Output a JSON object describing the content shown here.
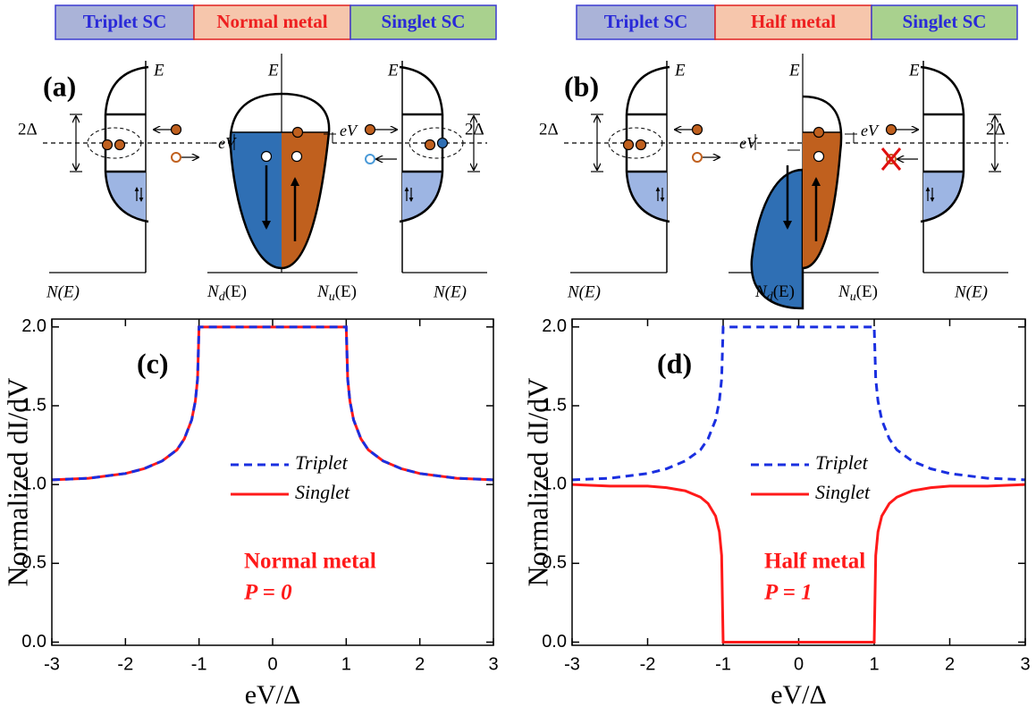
{
  "chart_data": [
    {
      "type": "line",
      "panel_label": "(c)",
      "x_label": "eV/Δ",
      "y_label": "Normalized dI/dV",
      "x": [
        -3,
        -2.5,
        -2,
        -1.75,
        -1.5,
        -1.3,
        -1.2,
        -1.1,
        -1.05,
        -1.02,
        -1,
        0,
        1,
        1.02,
        1.05,
        1.1,
        1.2,
        1.3,
        1.5,
        1.75,
        2,
        2.5,
        3
      ],
      "series": [
        {
          "name": "Triplet",
          "color": "#1a2fe0",
          "line_style": "dashed",
          "values": [
            1.03,
            1.04,
            1.07,
            1.1,
            1.15,
            1.22,
            1.29,
            1.41,
            1.53,
            1.67,
            2,
            2,
            2,
            1.67,
            1.53,
            1.41,
            1.29,
            1.22,
            1.15,
            1.1,
            1.07,
            1.04,
            1.03
          ]
        },
        {
          "name": "Singlet",
          "color": "#ff1a1a",
          "line_style": "solid",
          "values": [
            1.03,
            1.04,
            1.07,
            1.1,
            1.15,
            1.22,
            1.29,
            1.41,
            1.53,
            1.67,
            2,
            2,
            2,
            1.67,
            1.53,
            1.41,
            1.29,
            1.22,
            1.15,
            1.1,
            1.07,
            1.04,
            1.03
          ]
        }
      ],
      "xlim": [
        -3,
        3
      ],
      "xticks": [
        -3,
        -2,
        -1,
        0,
        1,
        2,
        3
      ],
      "ylim": [
        -0.02,
        2.05
      ],
      "yticks": [
        {
          "value": 0,
          "label": "0.0"
        },
        {
          "value": 0.5,
          "label": "0.5"
        },
        {
          "value": 1,
          "label": "1.0"
        },
        {
          "value": 1.5,
          "label": "1.5"
        },
        {
          "value": 2,
          "label": "2.0"
        }
      ],
      "annotations": [
        "Normal metal",
        "P = 0"
      ]
    },
    {
      "type": "line",
      "panel_label": "(d)",
      "x_label": "eV/Δ",
      "y_label": "Normalized dI/dV",
      "x": [
        -3,
        -2.5,
        -2,
        -1.75,
        -1.5,
        -1.3,
        -1.2,
        -1.1,
        -1.05,
        -1.02,
        -1,
        0,
        1,
        1.02,
        1.05,
        1.1,
        1.2,
        1.3,
        1.5,
        1.75,
        2,
        2.5,
        3
      ],
      "series": [
        {
          "name": "Triplet",
          "color": "#1a2fe0",
          "line_style": "dashed",
          "values": [
            1.03,
            1.04,
            1.07,
            1.1,
            1.15,
            1.22,
            1.29,
            1.41,
            1.53,
            1.67,
            2,
            2,
            2,
            1.67,
            1.53,
            1.41,
            1.29,
            1.22,
            1.15,
            1.1,
            1.07,
            1.04,
            1.03
          ]
        },
        {
          "name": "Singlet",
          "color": "#ff1a1a",
          "line_style": "solid",
          "values": [
            1.0,
            0.99,
            0.99,
            0.98,
            0.96,
            0.92,
            0.88,
            0.8,
            0.7,
            0.55,
            0,
            0,
            0,
            0.55,
            0.7,
            0.8,
            0.88,
            0.92,
            0.96,
            0.98,
            0.99,
            0.99,
            1.0
          ]
        }
      ],
      "xlim": [
        -3,
        3
      ],
      "xticks": [
        -3,
        -2,
        -1,
        0,
        1,
        2,
        3
      ],
      "ylim": [
        -0.02,
        2.05
      ],
      "yticks": [
        {
          "value": 0,
          "label": "0.0"
        },
        {
          "value": 0.5,
          "label": "0.5"
        },
        {
          "value": 1,
          "label": "1.0"
        },
        {
          "value": 1.5,
          "label": "1.5"
        },
        {
          "value": 2,
          "label": "2.0"
        }
      ],
      "annotations": [
        "Half metal",
        "P = 1"
      ]
    }
  ],
  "diagrams": [
    {
      "label": "(a)",
      "materials": [
        "Triplet SC",
        "Normal metal",
        "Singlet SC"
      ],
      "energy": "E",
      "gap": "2Δ",
      "bias": "eV",
      "neg_bias": "−eV",
      "dos": "N(E)",
      "dos_down": {
        "symbol": "N",
        "sub": "d",
        "arg": "(E)"
      },
      "dos_up": {
        "symbol": "N",
        "sub": "u",
        "arg": "(E)"
      }
    },
    {
      "label": "(b)",
      "materials": [
        "Triplet SC",
        "Half metal",
        "Singlet SC"
      ],
      "energy": "E",
      "gap": "2Δ",
      "bias": "eV",
      "neg_bias": "−eV",
      "dos": "N(E)",
      "dos_down": {
        "symbol": "N",
        "sub": "d",
        "arg": "(E)"
      },
      "dos_up": {
        "symbol": "N",
        "sub": "u",
        "arg": "(E)"
      }
    }
  ]
}
